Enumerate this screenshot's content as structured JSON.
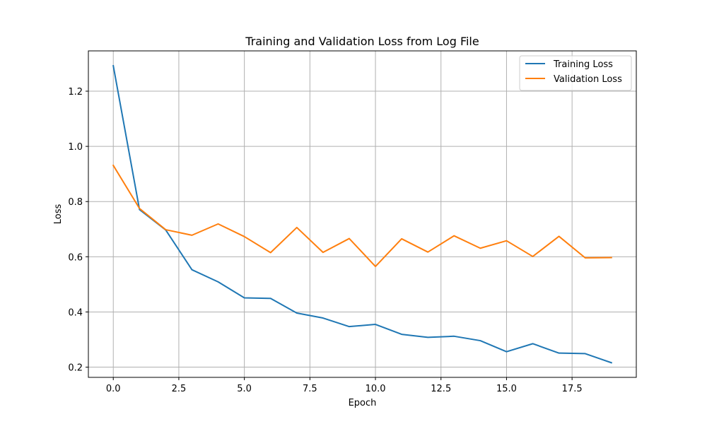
{
  "chart_data": {
    "type": "line",
    "title": "Training and Validation Loss from Log File",
    "xlabel": "Epoch",
    "ylabel": "Loss",
    "xlim": [
      -0.95,
      19.95
    ],
    "ylim": [
      0.163,
      1.346
    ],
    "x_ticks": [
      0,
      2.5,
      5,
      7.5,
      10,
      12.5,
      15,
      17.5
    ],
    "x_tick_labels": [
      "0.0",
      "2.5",
      "5.0",
      "7.5",
      "10.0",
      "12.5",
      "15.0",
      "17.5"
    ],
    "y_ticks": [
      0.2,
      0.4,
      0.6,
      0.8,
      1.0,
      1.2
    ],
    "y_tick_labels": [
      "0.2",
      "0.4",
      "0.6",
      "0.8",
      "1.0",
      "1.2"
    ],
    "grid": true,
    "legend_position": "top-right",
    "x": [
      0,
      1,
      2,
      3,
      4,
      5,
      6,
      7,
      8,
      9,
      10,
      11,
      12,
      13,
      14,
      15,
      16,
      17,
      18,
      19
    ],
    "series": [
      {
        "name": "Training Loss",
        "color": "#1f77b4",
        "values": [
          1.292,
          0.771,
          0.697,
          0.553,
          0.509,
          0.451,
          0.449,
          0.396,
          0.378,
          0.347,
          0.355,
          0.319,
          0.308,
          0.312,
          0.296,
          0.256,
          0.285,
          0.251,
          0.249,
          0.216
        ]
      },
      {
        "name": "Validation Loss",
        "color": "#ff7f0e",
        "values": [
          0.931,
          0.775,
          0.698,
          0.678,
          0.719,
          0.673,
          0.615,
          0.706,
          0.616,
          0.666,
          0.565,
          0.665,
          0.617,
          0.676,
          0.631,
          0.658,
          0.601,
          0.674,
          0.596,
          0.597
        ]
      }
    ]
  }
}
